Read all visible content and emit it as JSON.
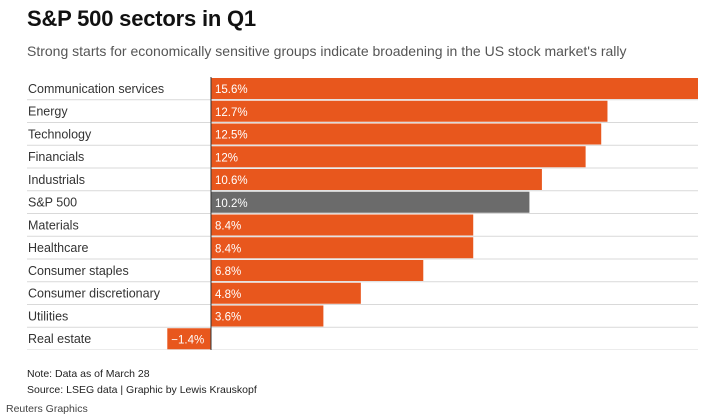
{
  "header": {
    "title": "S&P 500 sectors in Q1",
    "subtitle": "Strong starts for economically sensitive groups indicate broadening in the US stock market's rally"
  },
  "footer": {
    "note": "Note: Data as of March 28",
    "source": "Source: LSEG data | Graphic by Lewis Krauskopf",
    "credit": "Reuters Graphics"
  },
  "colors": {
    "bar": "#e8571d",
    "highlight": "#6b6b6b",
    "row_line": "#d9d9d9",
    "value_text": "#ffffff"
  },
  "chart_data": {
    "type": "bar",
    "orientation": "horizontal",
    "title": "S&P 500 sectors in Q1",
    "subtitle": "Strong starts for economically sensitive groups indicate broadening in the US stock market's rally",
    "categories": [
      "Communication services",
      "Energy",
      "Technology",
      "Financials",
      "Industrials",
      "S&P 500",
      "Materials",
      "Healthcare",
      "Consumer staples",
      "Consumer discretionary",
      "Utilities",
      "Real estate"
    ],
    "values": [
      15.6,
      12.7,
      12.5,
      12,
      10.6,
      10.2,
      8.4,
      8.4,
      6.8,
      4.8,
      3.6,
      -1.4
    ],
    "labels": [
      "15.6%",
      "12.7%",
      "12.5%",
      "12%",
      "10.6%",
      "10.2%",
      "8.4%",
      "8.4%",
      "6.8%",
      "4.8%",
      "3.6%",
      "−1.4%"
    ],
    "highlight": "S&P 500",
    "unit": "%",
    "xlim": [
      -1.4,
      15.6
    ],
    "xlabel": "",
    "ylabel": "",
    "grid": false,
    "legend": "none"
  }
}
